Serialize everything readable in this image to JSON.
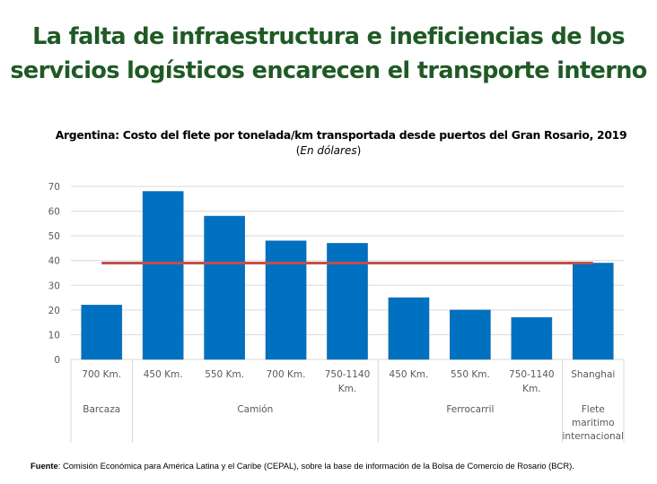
{
  "headline": {
    "line1": "La falta de infraestructura e ineficiencias de los",
    "line2": "servicios logísticos encarecen el transporte interno"
  },
  "colors": {
    "headline": "#1f5a25",
    "bar": "#0070c0",
    "average_line": "#c0504d",
    "gridline": "#d9d9d9",
    "axis_text": "#595959"
  },
  "chart_data": {
    "type": "bar",
    "title": "Argentina: Costo del flete por tonelada/km transportada desde puertos del Gran Rosario, 2019",
    "subtitle_prefix": "(",
    "subtitle_italic": "En dólares",
    "subtitle_suffix": ")",
    "xlabel": "",
    "ylabel": "",
    "ylim": [
      0,
      70
    ],
    "yticks": [
      0,
      10,
      20,
      30,
      40,
      50,
      60,
      70
    ],
    "grid": true,
    "categories": [
      [
        "700 Km."
      ],
      [
        "450 Km."
      ],
      [
        "550 Km."
      ],
      [
        "700 Km."
      ],
      [
        "750-1140",
        "Km."
      ],
      [
        "450 Km."
      ],
      [
        "550 Km."
      ],
      [
        "750-1140",
        "Km."
      ],
      [
        "Shanghai"
      ]
    ],
    "groups": [
      {
        "label": [
          "Barcaza"
        ],
        "span": [
          0,
          0
        ]
      },
      {
        "label": [
          "Camión"
        ],
        "span": [
          1,
          4
        ]
      },
      {
        "label": [
          "Ferrocarril"
        ],
        "span": [
          5,
          7
        ]
      },
      {
        "label": [
          "Flete",
          "maritimo",
          "internacional"
        ],
        "span": [
          8,
          8
        ]
      }
    ],
    "series": [
      {
        "name": "Costo del flete",
        "type": "bar",
        "values": [
          22,
          68,
          58,
          48,
          47,
          25,
          20,
          17,
          39
        ]
      },
      {
        "name": "Promedio",
        "type": "line",
        "value": 39,
        "from_category": 0,
        "to_category": 8
      }
    ]
  },
  "source": {
    "label": "Fuente",
    "text": ": Comisión Económica para América Latina y el Caribe (CEPAL), sobre la base de información de la Bolsa de Comercio de Rosario (BCR)."
  }
}
